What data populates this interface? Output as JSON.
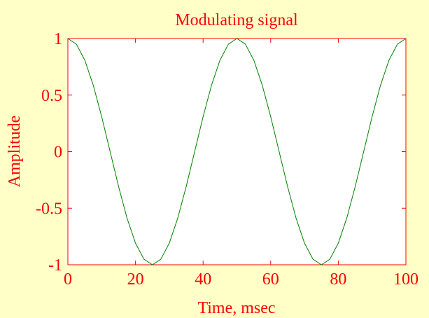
{
  "chart_data": {
    "type": "line",
    "title": "Modulating signal",
    "xlabel": "Time, msec",
    "ylabel": "Amplitude",
    "x": [
      0,
      2.5,
      5,
      7.5,
      10,
      12.5,
      15,
      17.5,
      20,
      22.5,
      25,
      27.5,
      30,
      32.5,
      35,
      37.5,
      40,
      42.5,
      45,
      47.5,
      50,
      52.5,
      55,
      57.5,
      60,
      62.5,
      65,
      67.5,
      70,
      72.5,
      75,
      77.5,
      80,
      82.5,
      85,
      87.5,
      90,
      92.5,
      95,
      97.5,
      100
    ],
    "series": [
      {
        "name": "signal",
        "color": "#008000",
        "values": [
          1,
          0.951,
          0.809,
          0.588,
          0.309,
          0,
          -0.309,
          -0.588,
          -0.809,
          -0.951,
          -1,
          -0.951,
          -0.809,
          -0.588,
          -0.309,
          0,
          0.309,
          0.588,
          0.809,
          0.951,
          1,
          0.951,
          0.809,
          0.588,
          0.309,
          0,
          -0.309,
          -0.588,
          -0.809,
          -0.951,
          -1,
          -0.951,
          -0.809,
          -0.588,
          -0.309,
          0,
          0.309,
          0.588,
          0.809,
          0.951,
          1
        ]
      }
    ],
    "xlim": [
      0,
      100
    ],
    "ylim": [
      -1,
      1
    ],
    "xticks": [
      0,
      20,
      40,
      60,
      80,
      100
    ],
    "yticks": [
      -1,
      -0.5,
      0,
      0.5,
      1
    ]
  }
}
